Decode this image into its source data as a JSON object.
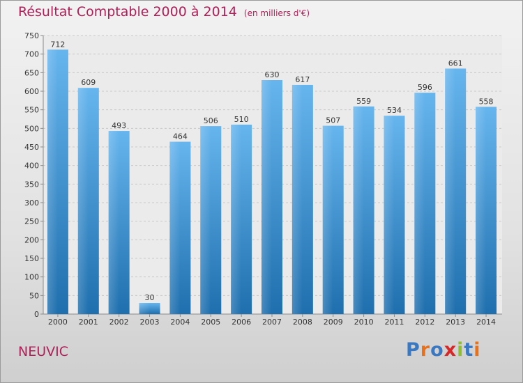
{
  "title": "Résultat Comptable 2000 à 2014",
  "subtitle": "(en milliers d'€)",
  "place": "NEUVIC",
  "logo": {
    "letters": [
      "P",
      "r",
      "o",
      "x",
      "i",
      "t",
      "i"
    ],
    "colors": [
      "#3a78c2",
      "#e8721c",
      "#3a78c2",
      "#d62828",
      "#8fbf2f",
      "#3a78c2",
      "#e8721c"
    ]
  },
  "colors": {
    "title": "#b01f57",
    "bar": "#3d96d8",
    "bar_light": "#66b5ee",
    "bar_dark": "#1f6fae"
  },
  "chart_data": {
    "type": "bar",
    "categories": [
      "2000",
      "2001",
      "2002",
      "2003",
      "2004",
      "2005",
      "2006",
      "2007",
      "2008",
      "2009",
      "2010",
      "2011",
      "2012",
      "2013",
      "2014"
    ],
    "values": [
      712,
      609,
      493,
      30,
      464,
      506,
      510,
      630,
      617,
      507,
      559,
      534,
      596,
      661,
      558
    ],
    "ylim": [
      0,
      750
    ],
    "yticks": [
      0,
      50,
      100,
      150,
      200,
      250,
      300,
      350,
      400,
      450,
      500,
      550,
      600,
      650,
      700,
      750
    ],
    "grid": true,
    "legend": "none"
  }
}
